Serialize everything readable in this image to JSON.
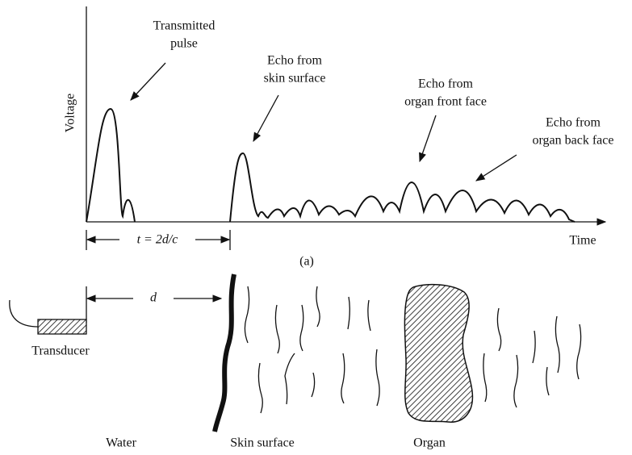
{
  "axes": {
    "y_label": "Voltage",
    "x_label": "Time"
  },
  "annotations": [
    {
      "lines": [
        "Transmitted",
        "pulse"
      ]
    },
    {
      "lines": [
        "Echo from",
        "skin surface"
      ]
    },
    {
      "lines": [
        "Echo from",
        "organ front face"
      ]
    },
    {
      "lines": [
        "Echo from",
        "organ back face"
      ]
    }
  ],
  "time_interval": "t = 2d/c",
  "caption": "(a)",
  "distance": "d",
  "labels": {
    "transducer": "Transducer",
    "water": "Water",
    "skin": "Skin surface",
    "organ": "Organ"
  }
}
